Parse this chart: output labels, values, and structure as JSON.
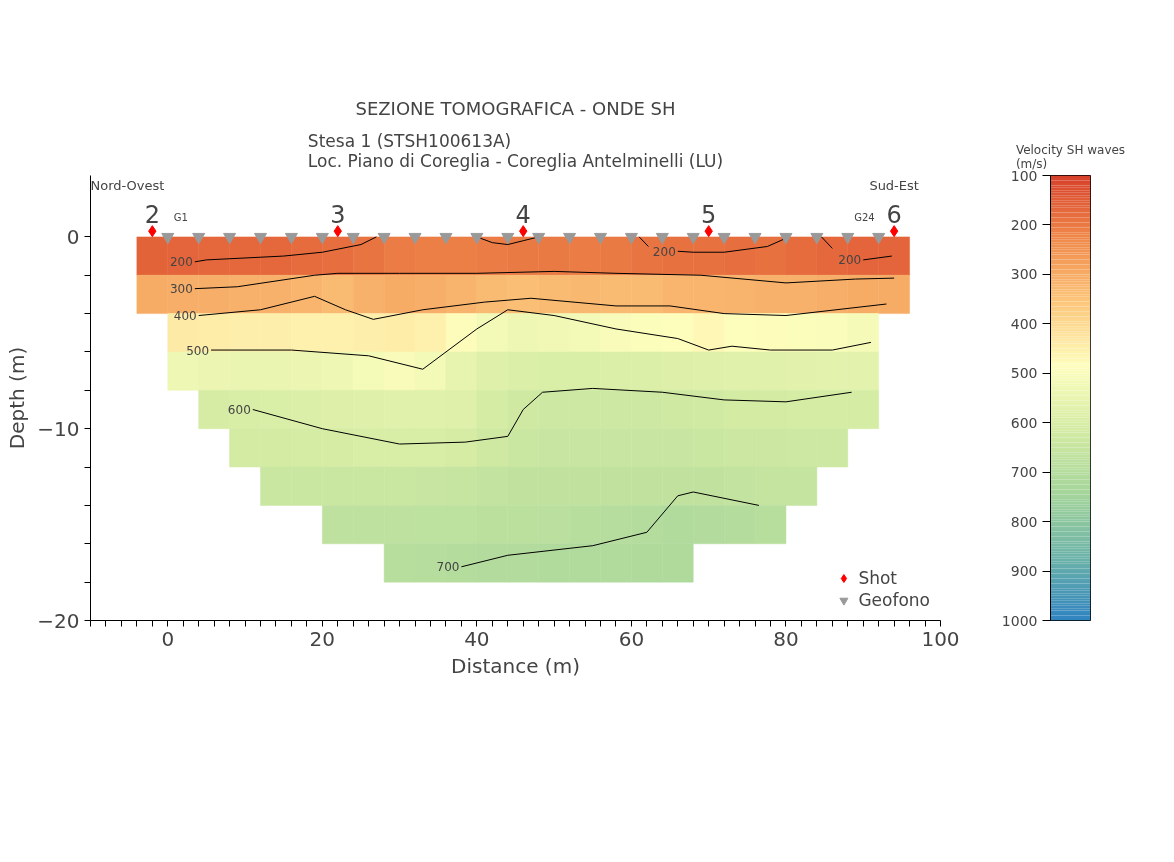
{
  "chart_data": {
    "type": "heatmap",
    "title": "SEZIONE TOMOGRAFICA - ONDE SH",
    "subtitle": "Stesa 1 (STSH100613A)\nLoc. Piano di Coreglia - Coreglia Antelminelli (LU)",
    "xlabel": "Distance (m)",
    "ylabel": "Depth (m)",
    "clabel": "Velocity SH waves\n(m/s)",
    "x": [
      -2,
      2,
      6,
      10,
      14,
      18,
      22,
      26,
      30,
      34,
      38,
      42,
      46,
      50,
      54,
      58,
      62,
      66,
      70,
      74,
      78,
      82,
      86,
      90,
      94
    ],
    "y": [
      -1,
      -3,
      -5,
      -7,
      -9,
      -11,
      -13,
      -15,
      -17
    ],
    "cells": [
      [
        160,
        165,
        170,
        170,
        170,
        175,
        180,
        190,
        205,
        210,
        210,
        205,
        200,
        200,
        205,
        200,
        190,
        185,
        185,
        180,
        185,
        175,
        170,
        165,
        165
      ],
      [
        300,
        305,
        305,
        310,
        310,
        320,
        330,
        310,
        300,
        305,
        315,
        330,
        340,
        330,
        325,
        330,
        330,
        320,
        320,
        315,
        310,
        310,
        305,
        300,
        300
      ],
      [
        null,
        440,
        445,
        450,
        450,
        455,
        455,
        450,
        445,
        455,
        480,
        520,
        530,
        525,
        520,
        505,
        495,
        490,
        470,
        490,
        480,
        495,
        500,
        510,
        null
      ],
      [
        null,
        535,
        540,
        545,
        545,
        540,
        530,
        515,
        505,
        520,
        555,
        580,
        590,
        595,
        595,
        590,
        590,
        585,
        580,
        575,
        575,
        570,
        565,
        565,
        null
      ],
      [
        null,
        null,
        605,
        600,
        595,
        590,
        585,
        580,
        575,
        575,
        580,
        610,
        625,
        630,
        630,
        630,
        630,
        625,
        620,
        615,
        615,
        610,
        610,
        610,
        null
      ],
      [
        null,
        null,
        null,
        615,
        615,
        610,
        605,
        600,
        600,
        600,
        605,
        625,
        640,
        645,
        645,
        645,
        645,
        645,
        640,
        635,
        635,
        630,
        630,
        null,
        null
      ],
      [
        null,
        null,
        null,
        null,
        640,
        640,
        640,
        640,
        640,
        645,
        650,
        660,
        665,
        665,
        665,
        665,
        665,
        665,
        665,
        660,
        655,
        655,
        null,
        null,
        null
      ],
      [
        null,
        null,
        null,
        null,
        null,
        null,
        670,
        670,
        670,
        675,
        675,
        680,
        680,
        685,
        690,
        695,
        700,
        710,
        705,
        700,
        690,
        null,
        null,
        null,
        null
      ],
      [
        null,
        null,
        null,
        null,
        null,
        null,
        null,
        null,
        690,
        695,
        700,
        705,
        705,
        710,
        710,
        710,
        715,
        715,
        null,
        null,
        null,
        null,
        null,
        null,
        null
      ]
    ],
    "colors": [
      "#d7402a",
      "#f08a4b",
      "#fcc77c",
      "#fefebd",
      "#d3eba3",
      "#a5d59a",
      "#6db3a8",
      "#2f83c0"
    ],
    "clim": [
      1000,
      100
    ],
    "cticks": [
      100,
      200,
      300,
      400,
      500,
      600,
      700,
      800,
      900,
      1000
    ],
    "xlim": [
      -10,
      100
    ],
    "xticks": [
      0,
      20,
      40,
      60,
      80,
      100,
      {
        "value": -10,
        "label": null
      },
      {
        "value": -8,
        "label": null
      },
      {
        "value": -6,
        "label": null
      },
      {
        "value": -4,
        "label": null
      },
      {
        "value": -2,
        "label": null
      },
      {
        "value": 2,
        "label": null
      },
      {
        "value": 4,
        "label": null
      },
      {
        "value": 6,
        "label": null
      },
      {
        "value": 8,
        "label": null
      },
      {
        "value": 10,
        "label": null
      },
      {
        "value": 12,
        "label": null
      },
      {
        "value": 14,
        "label": null
      },
      {
        "value": 16,
        "label": null
      },
      {
        "value": 18,
        "label": null
      },
      {
        "value": 22,
        "label": null
      },
      {
        "value": 24,
        "label": null
      },
      {
        "value": 26,
        "label": null
      },
      {
        "value": 28,
        "label": null
      },
      {
        "value": 30,
        "label": null
      },
      {
        "value": 32,
        "label": null
      },
      {
        "value": 34,
        "label": null
      },
      {
        "value": 36,
        "label": null
      },
      {
        "value": 38,
        "label": null
      },
      {
        "value": 42,
        "label": null
      },
      {
        "value": 44,
        "label": null
      },
      {
        "value": 46,
        "label": null
      },
      {
        "value": 48,
        "label": null
      },
      {
        "value": 50,
        "label": null
      },
      {
        "value": 52,
        "label": null
      },
      {
        "value": 54,
        "label": null
      },
      {
        "value": 56,
        "label": null
      },
      {
        "value": 58,
        "label": null
      },
      {
        "value": 62,
        "label": null
      },
      {
        "value": 64,
        "label": null
      },
      {
        "value": 66,
        "label": null
      },
      {
        "value": 68,
        "label": null
      },
      {
        "value": 70,
        "label": null
      },
      {
        "value": 72,
        "label": null
      },
      {
        "value": 74,
        "label": null
      },
      {
        "value": 76,
        "label": null
      },
      {
        "value": 78,
        "label": null
      },
      {
        "value": 82,
        "label": null
      },
      {
        "value": 84,
        "label": null
      },
      {
        "value": 86,
        "label": null
      },
      {
        "value": 88,
        "label": null
      },
      {
        "value": 90,
        "label": null
      },
      {
        "value": 92,
        "label": null
      },
      {
        "value": 94,
        "label": null
      },
      {
        "value": 96,
        "label": null
      },
      {
        "value": 98,
        "label": null
      }
    ],
    "ylim": [
      -20,
      3.2
    ],
    "yticks": [
      0,
      -10,
      -20,
      {
        "value": -2,
        "label": null
      },
      {
        "value": -4,
        "label": null
      },
      {
        "value": -6,
        "label": null
      },
      {
        "value": -8,
        "label": null
      },
      {
        "value": -12,
        "label": null
      },
      {
        "value": -14,
        "label": null
      },
      {
        "value": -16,
        "label": null
      },
      {
        "value": -18,
        "label": null
      }
    ],
    "series": [
      {
        "type": "line",
        "name": "200",
        "color": "#000000",
        "x": [
          3.5,
          5,
          10,
          15,
          20,
          25,
          27
        ],
        "values": [
          -1.3,
          -1.2,
          -1.1,
          -1.0,
          -0.8,
          -0.4,
          0
        ]
      },
      {
        "type": "line",
        "color": "#000000",
        "x": [
          40,
          42,
          44,
          46,
          48
        ],
        "values": [
          0,
          -0.3,
          -0.4,
          -0.2,
          0
        ]
      },
      {
        "type": "line",
        "color": "#000000",
        "x": [
          61,
          62.2
        ],
        "values": [
          0,
          -0.5
        ]
      },
      {
        "type": "line",
        "name": "200",
        "color": "#000000",
        "x": [
          66,
          68,
          72,
          77.6,
          80.4
        ],
        "values": [
          -0.75,
          -0.8,
          -0.8,
          -0.5,
          0
        ]
      },
      {
        "type": "line",
        "color": "#000000",
        "x": [
          84.6,
          86
        ],
        "values": [
          0,
          -0.6
        ]
      },
      {
        "type": "line",
        "name": "200",
        "color": "#000000",
        "x": [
          90,
          93.7
        ],
        "values": [
          -1.2,
          -1.0
        ]
      },
      {
        "type": "line",
        "name": "300",
        "color": "#000000",
        "x": [
          3.5,
          9,
          19,
          22,
          30,
          40,
          50,
          58,
          69,
          80,
          89,
          94
        ],
        "values": [
          -2.7,
          -2.6,
          -2.0,
          -1.9,
          -1.9,
          -1.9,
          -1.8,
          -1.9,
          -2.0,
          -2.4,
          -2.2,
          -2.15
        ]
      },
      {
        "type": "line",
        "name": "400",
        "color": "#000000",
        "x": [
          4,
          12,
          19,
          23,
          26.6,
          33,
          41,
          47,
          58,
          65,
          72,
          80,
          93
        ],
        "values": [
          -4.1,
          -3.8,
          -3.1,
          -3.8,
          -4.3,
          -3.8,
          -3.4,
          -3.2,
          -3.6,
          -3.6,
          -4.0,
          -4.1,
          -3.5
        ]
      },
      {
        "type": "line",
        "name": "500",
        "color": "#000000",
        "x": [
          5.6,
          16,
          26,
          33,
          40,
          44,
          50,
          58,
          66,
          70,
          73,
          78,
          86,
          91
        ],
        "values": [
          -5.9,
          -5.9,
          -6.2,
          -6.9,
          -4.8,
          -3.8,
          -4.1,
          -4.8,
          -5.3,
          -5.9,
          -5.7,
          -5.9,
          -5.9,
          -5.5
        ]
      },
      {
        "type": "line",
        "name": "600",
        "color": "#000000",
        "x": [
          11,
          20,
          30,
          38.5,
          44,
          46,
          48.5,
          55,
          64,
          72,
          80,
          88.5
        ],
        "values": [
          -9.0,
          -10.0,
          -10.8,
          -10.7,
          -10.4,
          -9.0,
          -8.1,
          -7.9,
          -8.1,
          -8.5,
          -8.6,
          -8.1
        ]
      },
      {
        "type": "line",
        "name": "700",
        "color": "#000000",
        "x": [
          38,
          44,
          55,
          62,
          66,
          68,
          76.5
        ],
        "values": [
          -17.2,
          -16.6,
          -16.1,
          -15.4,
          -13.5,
          -13.3,
          -14.0
        ]
      },
      {
        "type": "scatter",
        "name": "Shot",
        "color": "#ff0000",
        "marker": "diamond",
        "x": [
          -2,
          22,
          46,
          70,
          94
        ],
        "values": [
          0.3,
          0.3,
          0.3,
          0.3,
          0.3
        ]
      },
      {
        "type": "scatter",
        "name": "Geofono",
        "color": "#999999",
        "marker": "triangle",
        "x": [
          0,
          4,
          8,
          12,
          16,
          20,
          24,
          28,
          32,
          36,
          40,
          44,
          48,
          52,
          56,
          60,
          64,
          68,
          72,
          76,
          80,
          84,
          88,
          92
        ],
        "values": [
          0,
          0,
          0,
          0,
          0,
          0,
          0,
          0,
          0,
          0,
          0,
          0,
          0,
          0,
          0,
          0,
          0,
          0,
          0,
          0,
          0,
          0,
          0,
          0
        ]
      }
    ],
    "annotations": [
      "Nord-Ovest",
      "Sud-Est",
      "2",
      "3",
      "4",
      "5",
      "6",
      "G1",
      "G24"
    ],
    "legend": "bottom right"
  }
}
